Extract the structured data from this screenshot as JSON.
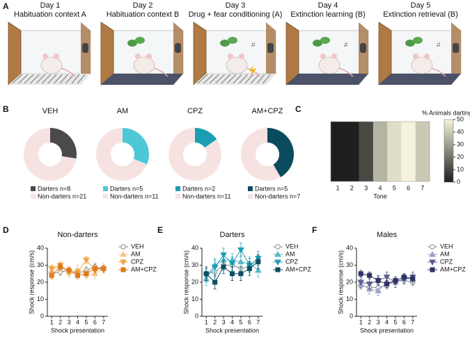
{
  "panel_labels": [
    "A",
    "B",
    "C",
    "D",
    "E",
    "F"
  ],
  "panel_a": {
    "days": [
      {
        "day": "Day 1",
        "context": "Habituation context A"
      },
      {
        "day": "Day 2",
        "context": "Habituation context B"
      },
      {
        "day": "Day 3",
        "context": "Drug + fear conditioning (A)"
      },
      {
        "day": "Day 4",
        "context": "Extinction learning (B)"
      },
      {
        "day": "Day 5",
        "context": "Extinction retrieval (B)"
      }
    ]
  },
  "chart_data": [
    {
      "type": "pie",
      "title": "VEH",
      "categories": [
        "Darters n=8",
        "Non-darters n=21"
      ],
      "values": [
        8,
        21
      ],
      "colors": [
        "#4a4a4a",
        "#f6e3e1"
      ]
    },
    {
      "type": "pie",
      "title": "AM",
      "categories": [
        "Darters n=5",
        "Non-darters n=11"
      ],
      "values": [
        5,
        11
      ],
      "colors": [
        "#4ec8d6",
        "#f6e3e1"
      ]
    },
    {
      "type": "pie",
      "title": "CPZ",
      "categories": [
        "Darters n=2",
        "Non-darters n=11"
      ],
      "values": [
        2,
        11
      ],
      "colors": [
        "#1b9db3",
        "#f6e3e1"
      ]
    },
    {
      "type": "pie",
      "title": "AM+CPZ",
      "categories": [
        "Darters n=5",
        "Non-darters n=7"
      ],
      "values": [
        5,
        7
      ],
      "colors": [
        "#0b4b5e",
        "#f6e3e1"
      ]
    },
    {
      "type": "heatmap",
      "x_label": "Tone",
      "categories": [
        "1",
        "2",
        "3",
        "4",
        "5",
        "6",
        "7"
      ],
      "values": [
        0,
        0,
        10,
        35,
        45,
        50,
        40
      ],
      "colorbar_title": "% Animals darting",
      "zlim": [
        0,
        50
      ],
      "zticks": [
        0,
        10,
        20,
        30,
        40,
        50
      ],
      "colormap": [
        "#1e1e1e",
        "#f6f3dc"
      ]
    },
    {
      "type": "line",
      "title": "Non-darters",
      "x_label": "Shock presentation",
      "y_label": "Shock response (cm/s)",
      "x": [
        1,
        2,
        3,
        4,
        5,
        6,
        7
      ],
      "xlim": [
        0.5,
        7.5
      ],
      "xticks": [
        1,
        2,
        3,
        4,
        5,
        6,
        7
      ],
      "ylim": [
        0,
        40
      ],
      "yticks": [
        0,
        10,
        20,
        30,
        40
      ],
      "series": [
        {
          "name": "VEH",
          "color": "#8a8a8a",
          "fill": "#ffffff",
          "marker": "circle",
          "values": [
            25,
            26,
            27,
            25,
            27,
            29,
            28
          ],
          "errors": [
            2,
            2,
            2,
            2,
            2,
            2,
            2
          ]
        },
        {
          "name": "AM",
          "color": "#f5c48c",
          "fill": "#f5c48c",
          "marker": "triangle-up",
          "values": [
            27,
            29,
            26,
            27,
            25,
            25,
            28
          ],
          "errors": [
            3,
            3,
            3,
            3,
            3,
            3,
            3
          ]
        },
        {
          "name": "CPZ",
          "color": "#f3a444",
          "fill": "#f3a444",
          "marker": "triangle-down",
          "values": [
            28,
            30,
            26,
            26,
            33,
            27,
            28
          ],
          "errors": [
            2,
            2,
            2,
            2,
            2,
            2,
            2
          ]
        },
        {
          "name": "AM+CPZ",
          "color": "#de7a1c",
          "fill": "#de7a1c",
          "marker": "square",
          "values": [
            24,
            29,
            27,
            24,
            25,
            28,
            28
          ],
          "errors": [
            2,
            2,
            2,
            2,
            2,
            2,
            2
          ]
        }
      ]
    },
    {
      "type": "line",
      "title": "Darters",
      "x_label": "Shock presentation",
      "y_label": "Shock response (cm/s)",
      "x": [
        1,
        2,
        3,
        4,
        5,
        6,
        7
      ],
      "xlim": [
        0.5,
        7.5
      ],
      "xticks": [
        1,
        2,
        3,
        4,
        5,
        6,
        7
      ],
      "ylim": [
        0,
        40
      ],
      "yticks": [
        0,
        10,
        20,
        30,
        40
      ],
      "series": [
        {
          "name": "VEH",
          "color": "#8a8a8a",
          "fill": "#ffffff",
          "marker": "circle",
          "values": [
            25,
            26,
            30,
            30,
            28,
            29,
            33
          ],
          "errors": [
            3,
            3,
            3,
            3,
            3,
            3,
            3
          ]
        },
        {
          "name": "AM",
          "color": "#5bb9c5",
          "fill": "#5bb9c5",
          "marker": "triangle-up",
          "values": [
            22,
            30,
            33,
            33,
            32,
            31,
            27
          ],
          "errors": [
            4,
            4,
            4,
            4,
            4,
            4,
            4
          ]
        },
        {
          "name": "CPZ",
          "color": "#1b9db3",
          "fill": "#1b9db3",
          "marker": "triangle-down",
          "values": [
            24,
            29,
            36,
            31,
            39,
            30,
            34
          ],
          "errors": [
            4,
            4,
            4,
            4,
            4,
            4,
            4
          ]
        },
        {
          "name": "AM+CPZ",
          "color": "#0c4e62",
          "fill": "#0c4e62",
          "marker": "square",
          "values": [
            25,
            20,
            29,
            25,
            25,
            28,
            32
          ],
          "errors": [
            4,
            4,
            4,
            4,
            4,
            4,
            4
          ]
        }
      ]
    },
    {
      "type": "line",
      "title": "Males",
      "x_label": "Shock presentation",
      "y_label": "Shock response (cm/s)",
      "x": [
        1,
        2,
        3,
        4,
        5,
        6,
        7
      ],
      "xlim": [
        0.5,
        7.5
      ],
      "xticks": [
        1,
        2,
        3,
        4,
        5,
        6,
        7
      ],
      "ylim": [
        0,
        40
      ],
      "yticks": [
        0,
        10,
        20,
        30,
        40
      ],
      "series": [
        {
          "name": "VEH",
          "color": "#8a8a8a",
          "fill": "#ffffff",
          "marker": "circle",
          "values": [
            18,
            17,
            17,
            18,
            21,
            21,
            20
          ],
          "errors": [
            2,
            2,
            2,
            2,
            2,
            2,
            2
          ]
        },
        {
          "name": "AM",
          "color": "#9da2c9",
          "fill": "#9da2c9",
          "marker": "triangle-up",
          "values": [
            19,
            16,
            15,
            20,
            20,
            22,
            22
          ],
          "errors": [
            3,
            3,
            3,
            3,
            3,
            3,
            3
          ]
        },
        {
          "name": "CPZ",
          "color": "#5b608f",
          "fill": "#5b608f",
          "marker": "triangle-down",
          "values": [
            20,
            19,
            21,
            23,
            20,
            22,
            23
          ],
          "errors": [
            3,
            3,
            3,
            3,
            3,
            3,
            3
          ]
        },
        {
          "name": "AM+CPZ",
          "color": "#2e3262",
          "fill": "#2e3262",
          "marker": "square",
          "values": [
            25,
            24,
            21,
            19,
            21,
            23,
            22
          ],
          "errors": [
            2,
            2,
            2,
            2,
            2,
            2,
            2
          ]
        }
      ]
    }
  ]
}
